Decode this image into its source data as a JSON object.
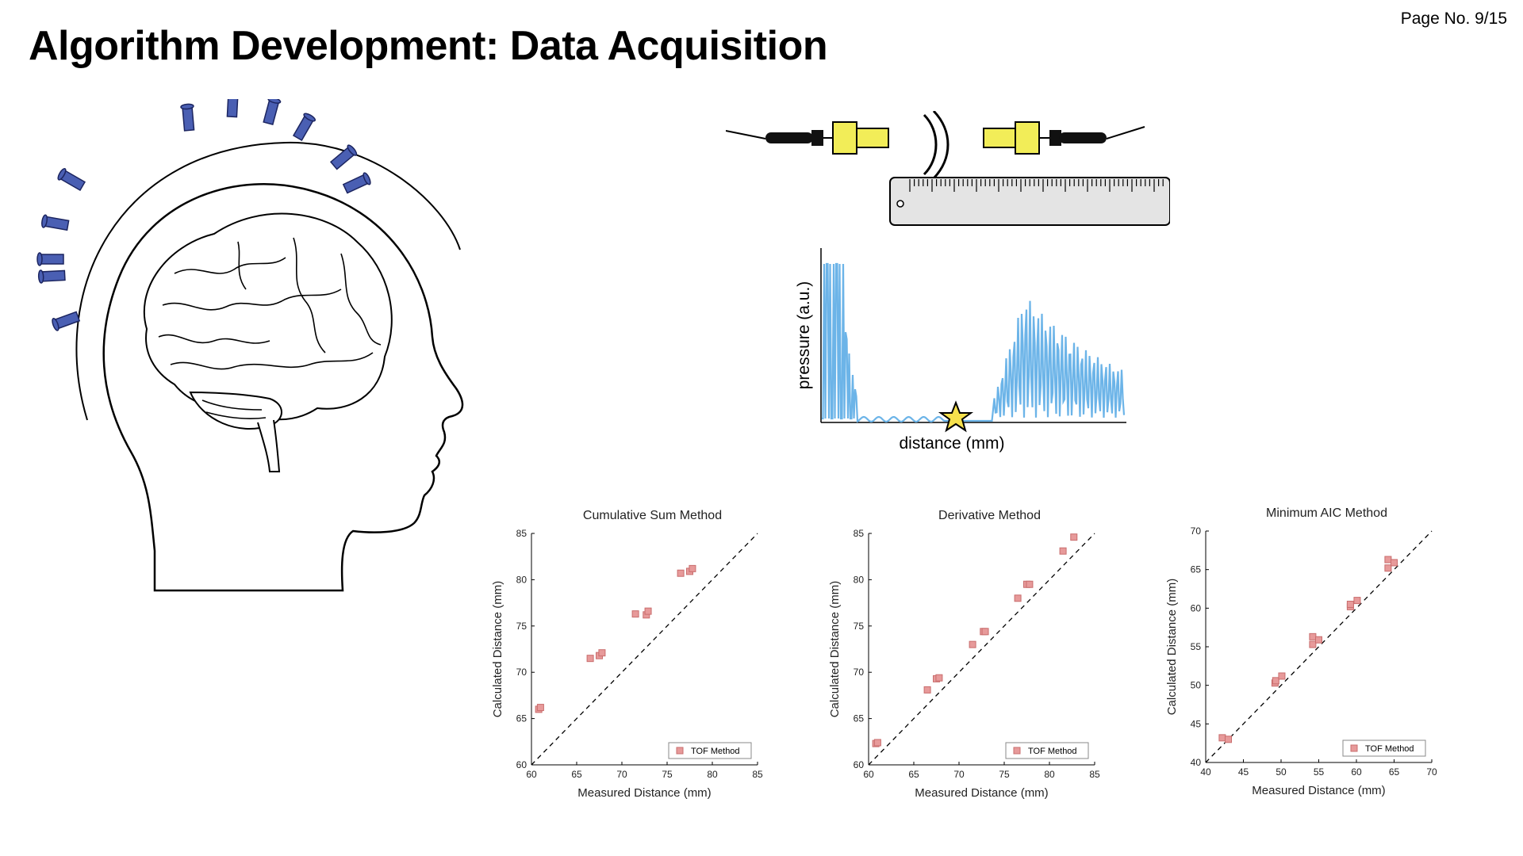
{
  "page_number": "Page No. 9/15",
  "title": "Algorithm Development: Data Acquisition",
  "waveform": {
    "ylabel": "pressure (a.u.)",
    "xlabel": "distance (mm)"
  },
  "legend_label": "TOF Method",
  "chart_data": [
    {
      "type": "scatter",
      "title": "Cumulative Sum Method",
      "xlabel": "Measured Distance (mm)",
      "ylabel": "Calculated Distance (mm)",
      "xlim": [
        60,
        85
      ],
      "ylim": [
        60,
        85
      ],
      "xticks": [
        60,
        65,
        70,
        75,
        80,
        85
      ],
      "yticks": [
        60,
        65,
        70,
        75,
        80,
        85
      ],
      "reference_line": "y = x (dashed)",
      "legend_position": "bottom-right",
      "series": [
        {
          "name": "TOF Method",
          "points": [
            [
              60.8,
              66.0
            ],
            [
              61.0,
              66.2
            ],
            [
              66.5,
              71.5
            ],
            [
              67.5,
              71.8
            ],
            [
              67.8,
              72.1
            ],
            [
              71.5,
              76.3
            ],
            [
              72.7,
              76.2
            ],
            [
              72.9,
              76.6
            ],
            [
              76.5,
              80.7
            ],
            [
              77.5,
              80.9
            ],
            [
              77.8,
              81.2
            ]
          ]
        }
      ]
    },
    {
      "type": "scatter",
      "title": "Derivative Method",
      "xlabel": "Measured Distance (mm)",
      "ylabel": "Calculated Distance (mm)",
      "xlim": [
        60,
        85
      ],
      "ylim": [
        60,
        85
      ],
      "xticks": [
        60,
        65,
        70,
        75,
        80,
        85
      ],
      "yticks": [
        60,
        65,
        70,
        75,
        80,
        85
      ],
      "reference_line": "y = x (dashed)",
      "legend_position": "bottom-right",
      "series": [
        {
          "name": "TOF Method",
          "points": [
            [
              60.8,
              62.3
            ],
            [
              61.0,
              62.4
            ],
            [
              66.5,
              68.1
            ],
            [
              67.5,
              69.3
            ],
            [
              67.8,
              69.4
            ],
            [
              71.5,
              73.0
            ],
            [
              72.7,
              74.4
            ],
            [
              72.9,
              74.4
            ],
            [
              76.5,
              78.0
            ],
            [
              77.5,
              79.5
            ],
            [
              77.8,
              79.5
            ],
            [
              81.5,
              83.1
            ],
            [
              82.7,
              84.6
            ]
          ]
        }
      ]
    },
    {
      "type": "scatter",
      "title": "Minimum AIC Method",
      "xlabel": "Measured Distance (mm)",
      "ylabel": "Calculated Distance (mm)",
      "xlim": [
        40,
        70
      ],
      "ylim": [
        40,
        70
      ],
      "xticks": [
        40,
        45,
        50,
        55,
        60,
        65,
        70
      ],
      "yticks": [
        40,
        45,
        50,
        55,
        60,
        65,
        70
      ],
      "reference_line": "y = x (dashed)",
      "legend_position": "bottom-right",
      "series": [
        {
          "name": "TOF Method",
          "points": [
            [
              42.2,
              43.2
            ],
            [
              43.0,
              43.0
            ],
            [
              49.2,
              50.3
            ],
            [
              49.3,
              50.6
            ],
            [
              50.1,
              51.2
            ],
            [
              54.2,
              55.3
            ],
            [
              54.2,
              56.3
            ],
            [
              55.0,
              55.9
            ],
            [
              59.2,
              60.2
            ],
            [
              59.2,
              60.5
            ],
            [
              60.1,
              61.0
            ],
            [
              64.2,
              65.2
            ],
            [
              64.2,
              66.3
            ],
            [
              65.0,
              65.9
            ]
          ]
        }
      ]
    }
  ],
  "colors": {
    "sensor_blue": "#4a5fb3",
    "transducer_yellow": "#f2ed58",
    "wave_blue": "#6cb4e8",
    "marker_fill": "#e79a9a",
    "marker_stroke": "#c96d6d",
    "star_yellow": "#f5e04c"
  },
  "icons": [
    "head-outline-icon",
    "brain-icon",
    "ultrasound-sensor-icon",
    "transducer-icon",
    "sound-wave-icon",
    "ruler-icon",
    "star-icon"
  ]
}
